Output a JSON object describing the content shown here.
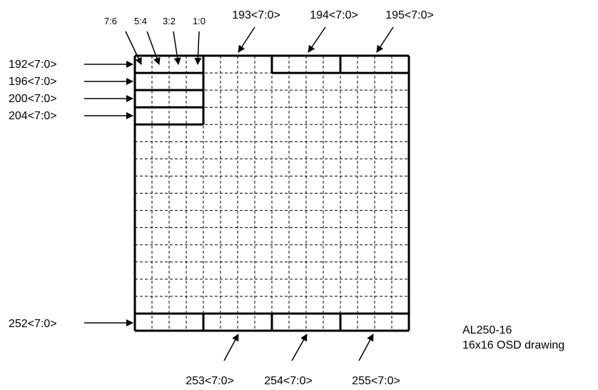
{
  "bit_labels": [
    "7:6",
    "5:4",
    "3:2",
    "1:0"
  ],
  "top_labels": [
    "193<7:0>",
    "194<7:0>",
    "195<7:0>"
  ],
  "left_labels": [
    "192<7:0>",
    "196<7:0>",
    "200<7:0>",
    "204<7:0>"
  ],
  "bottom_left_label": "252<7:0>",
  "bottom_labels": [
    "253<7:0>",
    "254<7:0>",
    "255<7:0>"
  ],
  "caption": {
    "line1": "AL250-16",
    "line2": "16x16 OSD drawing"
  },
  "grid": {
    "cells": 16
  }
}
